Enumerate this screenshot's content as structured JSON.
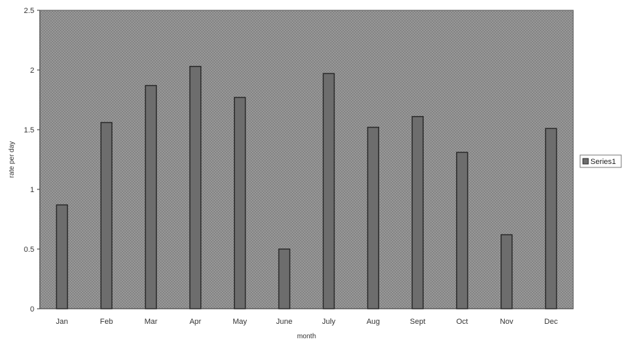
{
  "chart_data": {
    "type": "bar",
    "categories": [
      "Jan",
      "Feb",
      "Mar",
      "Apr",
      "May",
      "June",
      "July",
      "Aug",
      "Sept",
      "Oct",
      "Nov",
      "Dec"
    ],
    "series": [
      {
        "name": "Series1",
        "values": [
          0.87,
          1.56,
          1.87,
          2.03,
          1.77,
          0.5,
          1.97,
          1.52,
          1.61,
          1.31,
          0.62,
          1.51
        ]
      }
    ],
    "xlabel": "month",
    "ylabel": "rate per day",
    "ylim": [
      0,
      2.5
    ],
    "yticks": [
      "0",
      "0.5",
      "1",
      "1.5",
      "2",
      "2.5"
    ],
    "grid": false,
    "legend_position": "right",
    "colors": {
      "plot_background": "#8e8e8e",
      "bar_fill": "#6d6d6d",
      "bar_stroke": "#2a2a2a",
      "axis": "#333333"
    }
  }
}
